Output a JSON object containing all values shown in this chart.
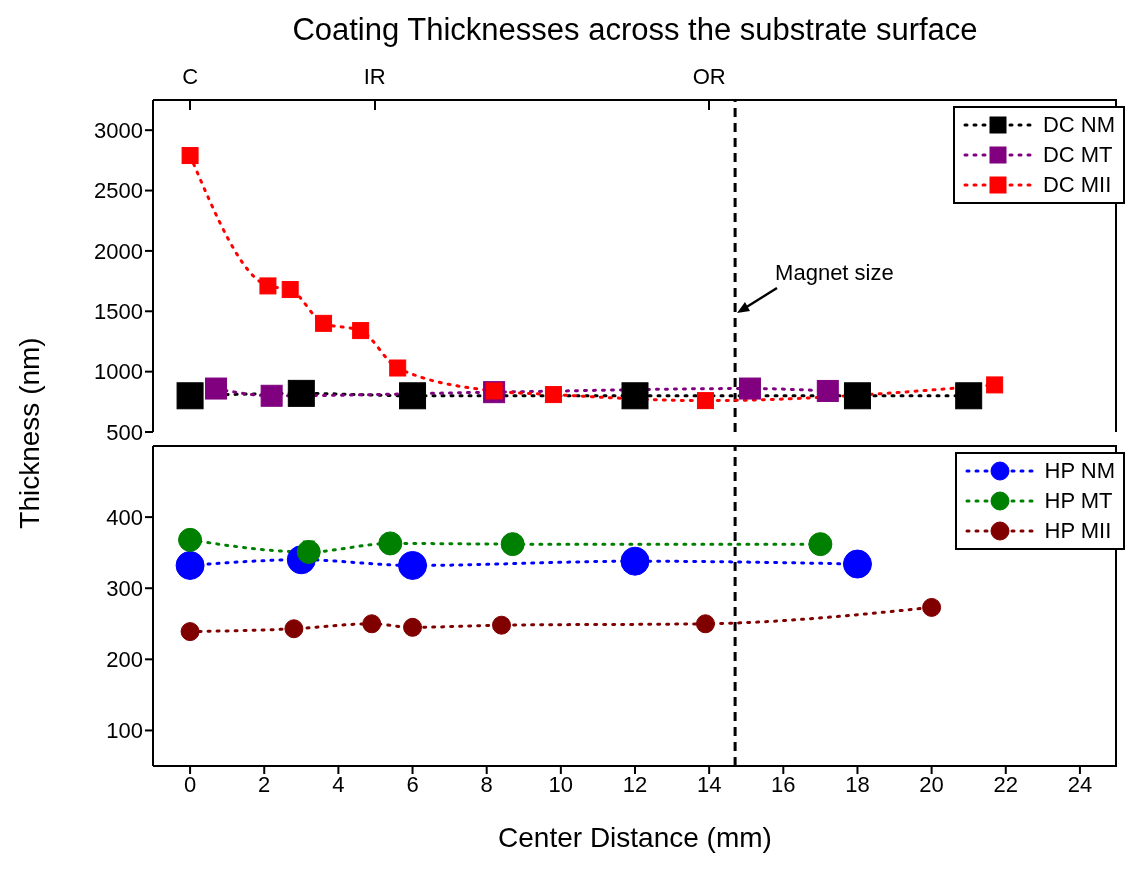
{
  "chart_data": [
    {
      "type": "line",
      "title": "Coating Thicknesses across the substrate surface",
      "ylabel": "Thickness (nm)",
      "xlim": [
        -1,
        25
      ],
      "ylim": [
        500,
        3250
      ],
      "yticks": [
        500,
        1000,
        1500,
        2000,
        2500,
        3000
      ],
      "tick_labels": "y",
      "marker": "square",
      "line_style": "dotted",
      "legend": "top right",
      "grid": false,
      "ref_lines": [
        {
          "axis": "x",
          "value": 14.7,
          "color": "#000000",
          "line_style": "dashed",
          "label": "Magnet size"
        }
      ],
      "annotations": [
        "C",
        "IR",
        "OR"
      ],
      "series": [
        {
          "name": "DC NM",
          "color": "#000000",
          "x": [
            0,
            3,
            6,
            12,
            18,
            21
          ],
          "values": [
            800,
            820,
            800,
            800,
            800,
            800
          ]
        },
        {
          "name": "DC MT",
          "color": "#800080",
          "x": [
            0.7,
            2.2,
            8.2,
            15.1,
            17.2
          ],
          "values": [
            860,
            800,
            830,
            860,
            840
          ]
        },
        {
          "name": "DC MII",
          "color": "#ff0000",
          "x": [
            0,
            2.1,
            2.7,
            3.6,
            4.6,
            5.6,
            8.2,
            9.8,
            13.9,
            21.7
          ],
          "values": [
            2790,
            1710,
            1680,
            1400,
            1340,
            1030,
            840,
            810,
            760,
            890
          ]
        }
      ]
    },
    {
      "type": "line",
      "xlabel": "Center Distance (mm)",
      "xlim": [
        -1,
        25
      ],
      "xticks": [
        0,
        2,
        4,
        6,
        8,
        10,
        12,
        14,
        16,
        18,
        20,
        22,
        24
      ],
      "ylim": [
        50,
        500
      ],
      "yticks": [
        100,
        200,
        300,
        400
      ],
      "marker": "circle",
      "line_style": "dotted",
      "legend": "top right",
      "grid": false,
      "ref_lines": [
        {
          "axis": "x",
          "value": 14.7,
          "color": "#000000",
          "line_style": "dashed"
        }
      ],
      "series": [
        {
          "name": "HP NM",
          "color": "#0000ff",
          "x": [
            0,
            3,
            6,
            12,
            18
          ],
          "values": [
            332,
            340,
            332,
            338,
            334
          ],
          "errors": [
            10,
            10,
            10,
            10,
            10
          ]
        },
        {
          "name": "HP MT",
          "color": "#008000",
          "x": [
            0,
            3.2,
            5.4,
            8.7,
            17
          ],
          "values": [
            368,
            351,
            363,
            362,
            362
          ],
          "errors": [
            10,
            15,
            8,
            8,
            8
          ]
        },
        {
          "name": "HP MII",
          "color": "#800000",
          "x": [
            0,
            2.8,
            4.9,
            6,
            8.4,
            13.9,
            20
          ],
          "values": [
            239,
            243,
            250,
            245,
            248,
            250,
            273
          ]
        }
      ]
    }
  ]
}
